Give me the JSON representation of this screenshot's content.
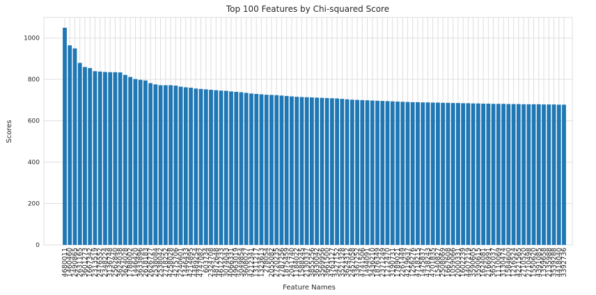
{
  "chart_data": {
    "type": "bar",
    "title": "Top 100 Features by Chi-squared Score",
    "xlabel": "Feature Names",
    "ylabel": "Scores",
    "ylim": [
      0,
      1100
    ],
    "yticks": [
      0,
      200,
      400,
      600,
      800,
      1000
    ],
    "grid": true,
    "bar_color": "#1f77b4",
    "categories": [
      "4680011",
      "1460460",
      "2490865",
      "2631165",
      "3601273",
      "1667342",
      "2313519",
      "2476552",
      "2348224",
      "3136748",
      "2562840",
      "3624038",
      "3624028",
      "1788002",
      "1446420",
      "3633896",
      "2618183",
      "2626727",
      "2538084",
      "2538042",
      "2718252",
      "4258028",
      "4275706",
      "2240601",
      "1446433",
      "4214895",
      "4489254",
      "4747082",
      "603734",
      "2324708",
      "4872648",
      "4612233",
      "3074043",
      "4066331",
      "4963019",
      "3049854",
      "3608027",
      "4212341",
      "1311217",
      "1323613",
      "278054",
      "2055082",
      "2720235",
      "2787256",
      "1875459",
      "2041740",
      "1184022",
      "1588245",
      "2130337",
      "3855256",
      "3630042",
      "3569956",
      "3661500",
      "4763127",
      "3427152",
      "3521328",
      "3624312",
      "2457058",
      "3367252",
      "4741506",
      "1494091",
      "3436210",
      "1876349",
      "2371249",
      "1212470",
      "3190731",
      "1789021",
      "2261449",
      "4219637",
      "1256276",
      "4718215",
      "1475837",
      "4738243",
      "4701835",
      "1540827",
      "2508069",
      "1667608",
      "1059066",
      "2000331",
      "1602239",
      "4407219",
      "3590605",
      "3590615",
      "1624081",
      "2166991",
      "3652037",
      "1110069",
      "3130474",
      "1584600",
      "1216524",
      "4221565",
      "2710520",
      "2710498",
      "1550620",
      "4391085",
      "1359658",
      "2135988",
      "3539288",
      "4418040",
      "3392736"
    ],
    "values": [
      1050,
      965,
      950,
      880,
      860,
      855,
      840,
      838,
      836,
      835,
      835,
      834,
      822,
      812,
      802,
      798,
      795,
      782,
      776,
      772,
      772,
      772,
      770,
      765,
      762,
      760,
      756,
      754,
      752,
      750,
      748,
      746,
      745,
      742,
      740,
      738,
      735,
      732,
      730,
      728,
      726,
      725,
      724,
      722,
      720,
      718,
      716,
      715,
      714,
      713,
      712,
      711,
      710,
      709,
      708,
      706,
      704,
      702,
      701,
      700,
      699,
      698,
      697,
      696,
      695,
      694,
      693,
      692,
      691,
      690,
      690,
      689,
      689,
      688,
      688,
      687,
      687,
      686,
      686,
      685,
      685,
      684,
      684,
      683,
      683,
      682,
      682,
      682,
      681,
      681,
      681,
      680,
      680,
      680,
      680,
      679,
      679,
      679,
      678,
      678
    ]
  }
}
